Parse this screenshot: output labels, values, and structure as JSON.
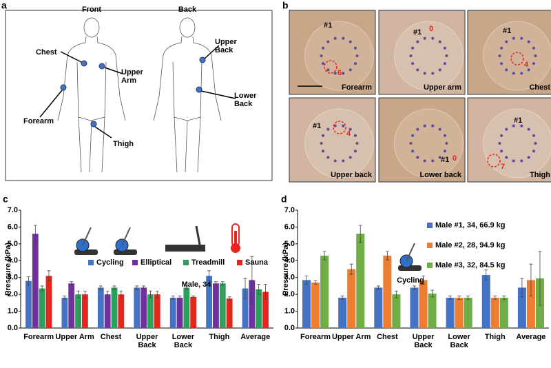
{
  "panel_a": {
    "letter": "a",
    "front": "Front",
    "back": "Back",
    "labels": [
      "Chest",
      "Upper Arm",
      "Forearm",
      "Thigh",
      "Upper Back",
      "Lower Back"
    ]
  },
  "panel_b": {
    "letter": "b",
    "photos": [
      {
        "label": "Forearm",
        "marker": "#1",
        "count": "6"
      },
      {
        "label": "Upper arm",
        "marker": "#1",
        "count": "0"
      },
      {
        "label": "Chest",
        "marker": "#1",
        "count": "4"
      },
      {
        "label": "Upper back",
        "marker": "#1",
        "count": "4"
      },
      {
        "label": "Lower back",
        "marker": "#1",
        "count": "0"
      },
      {
        "label": "Thigh",
        "marker": "#1",
        "count": "7"
      }
    ]
  },
  "chart_data": [
    {
      "type": "bar",
      "letter": "c",
      "ylabel": "Pressure (kPa)",
      "annotation": "Male, 34",
      "categories": [
        "Forearm",
        "Upper Arm",
        "Chest",
        "Upper Back",
        "Lower Back",
        "Thigh",
        "Average"
      ],
      "ylim": [
        0,
        7
      ],
      "yticks": [
        {
          "value": 0,
          "label": "0.0"
        },
        {
          "value": 1,
          "label": "1.0"
        },
        {
          "value": 2,
          "label": "2.0"
        },
        {
          "value": 3,
          "label": "3.0"
        },
        {
          "value": 4,
          "label": "4.0"
        },
        {
          "value": 5,
          "label": "5.0"
        },
        {
          "value": 6,
          "label": "6.0"
        },
        {
          "value": 7,
          "label": "7.0"
        }
      ],
      "series": [
        {
          "name": "Cycling",
          "color": "#4472c4",
          "values": [
            2.8,
            1.8,
            2.4,
            2.4,
            1.8,
            3.1,
            2.35
          ],
          "errors": [
            0.25,
            0.1,
            0.1,
            0.1,
            0.1,
            0.3,
            0.6
          ]
        },
        {
          "name": "Elliptical",
          "color": "#7030a0",
          "values": [
            5.6,
            2.65,
            2.0,
            2.4,
            1.8,
            2.65,
            2.85
          ],
          "errors": [
            0.5,
            0.1,
            0.2,
            0.1,
            0.1,
            0.1,
            1.4
          ]
        },
        {
          "name": "Treadmill",
          "color": "#2ca05a",
          "values": [
            2.35,
            2.0,
            2.4,
            2.0,
            2.4,
            2.65,
            2.3
          ],
          "errors": [
            0.15,
            0.2,
            0.1,
            0.2,
            0.1,
            0.1,
            0.3
          ]
        },
        {
          "name": "Sauna",
          "color": "#e8251c",
          "values": [
            3.1,
            2.0,
            2.0,
            2.0,
            1.85,
            1.75,
            2.15
          ],
          "errors": [
            0.3,
            0.2,
            0.2,
            0.2,
            0.05,
            0.1,
            0.45
          ]
        }
      ]
    },
    {
      "type": "bar",
      "letter": "d",
      "ylabel": "Pressure (kPa)",
      "annotation": "Cycling",
      "categories": [
        "Forearm",
        "Upper Arm",
        "Chest",
        "Upper Back",
        "Lower Back",
        "Thigh",
        "Average"
      ],
      "ylim": [
        0,
        7
      ],
      "yticks": [
        {
          "value": 0,
          "label": "0.0"
        },
        {
          "value": 1,
          "label": "1.0"
        },
        {
          "value": 2,
          "label": "2.0"
        },
        {
          "value": 3,
          "label": "3.0"
        },
        {
          "value": 4,
          "label": "4.0"
        },
        {
          "value": 5,
          "label": "5.0"
        },
        {
          "value": 6,
          "label": "6.0"
        },
        {
          "value": 7,
          "label": "7.0"
        }
      ],
      "series": [
        {
          "name": "Male #1, 34, 66.9 kg",
          "color": "#4472c4",
          "values": [
            2.85,
            1.8,
            2.4,
            2.4,
            1.8,
            3.15,
            2.4
          ],
          "errors": [
            0.25,
            0.1,
            0.1,
            0.1,
            0.1,
            0.3,
            0.55
          ]
        },
        {
          "name": "Male #2, 28, 94.9 kg",
          "color": "#ed7d31",
          "values": [
            2.7,
            3.5,
            4.3,
            2.85,
            1.8,
            1.8,
            2.85
          ],
          "errors": [
            0.1,
            0.3,
            0.25,
            0.25,
            0.1,
            0.1,
            0.95
          ]
        },
        {
          "name": "Male #3, 32, 84.5 kg",
          "color": "#70ad47",
          "values": [
            4.3,
            5.6,
            2.0,
            2.05,
            1.8,
            1.8,
            2.95
          ],
          "errors": [
            0.25,
            0.5,
            0.2,
            0.2,
            0.1,
            0.1,
            1.6
          ]
        }
      ]
    }
  ]
}
